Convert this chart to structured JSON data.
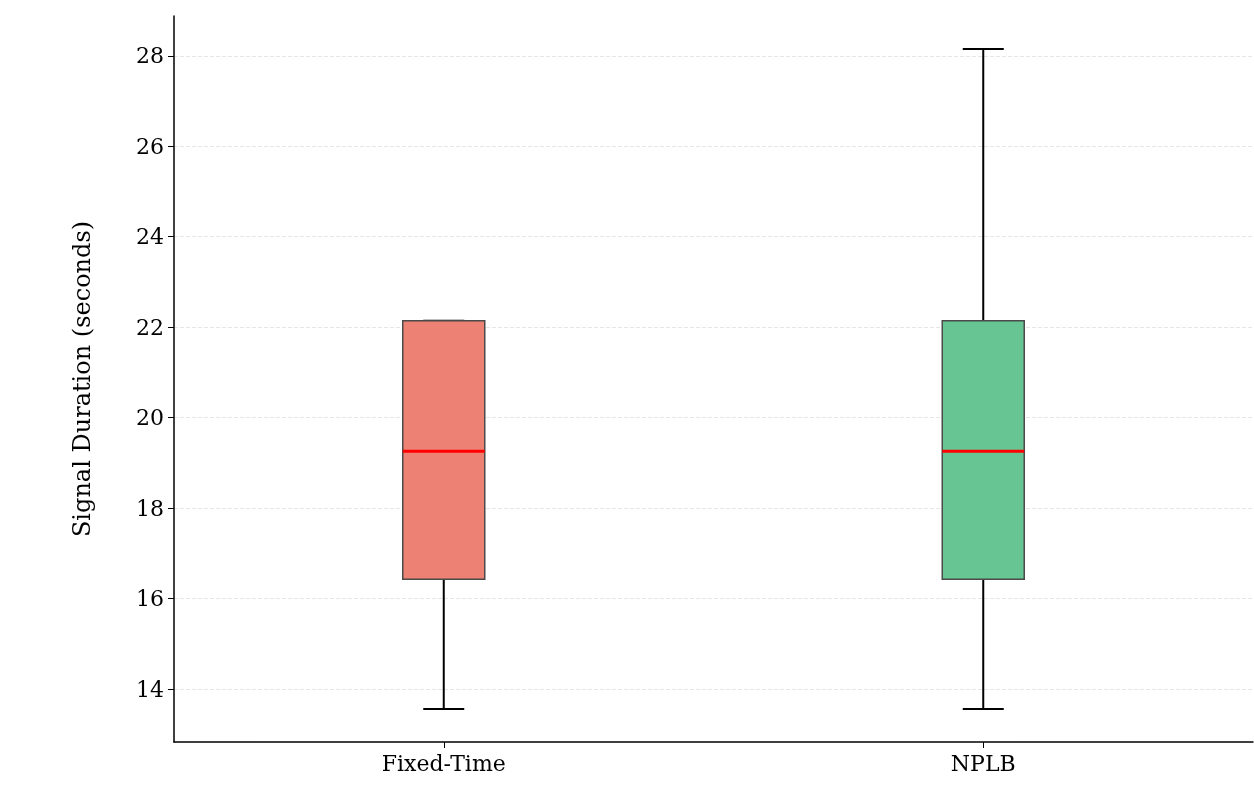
{
  "chart_data": {
    "type": "box",
    "ylabel": "Signal Duration (seconds)",
    "categories": [
      "Fixed-Time",
      "NPLB"
    ],
    "colors": [
      "#ed8173",
      "#66c592"
    ],
    "boxes": [
      {
        "low": 13.56,
        "q1": 16.43,
        "median": 19.26,
        "q3": 22.14,
        "high": 22.14
      },
      {
        "low": 13.56,
        "q1": 16.43,
        "median": 19.26,
        "q3": 22.14,
        "high": 28.15
      }
    ],
    "ylim": [
      12.83,
      28.88
    ],
    "yticks": [
      14,
      16,
      18,
      20,
      22,
      24,
      26,
      28
    ],
    "grid": "y"
  }
}
